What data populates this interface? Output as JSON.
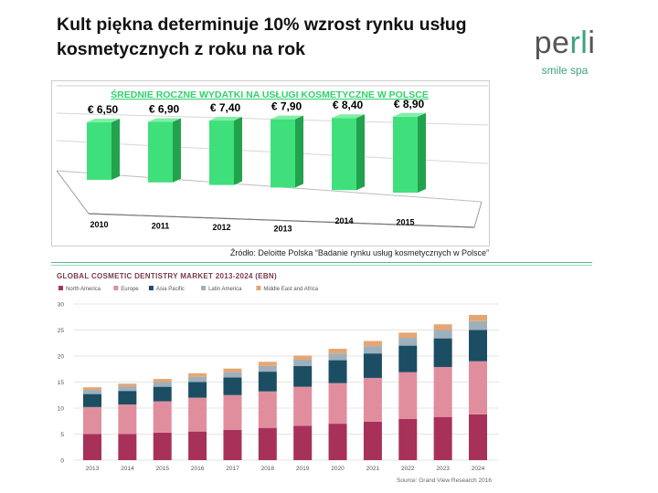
{
  "slide": {
    "title": "Kult piękna determinuje 10% wzrost rynku usług kosmetycznych z roku na rok"
  },
  "logo": {
    "name_left": "pe",
    "name_accent": "rl",
    "name_right": "i",
    "tagline": "smile spa"
  },
  "source_1": "Źródło: Deloitte Polska “Badanie rynku usług kosmetycznych w Polsce”",
  "colors": {
    "bar_green": "#3fe07c",
    "bar_green_side": "#23a24e",
    "bar_green_top": "#7ef0a6",
    "title_green": "#2fd36b",
    "north_america": "#a8315a",
    "europe": "#e08e9d",
    "asia_pacific": "#1c4e63",
    "latin_america": "#9eb0bc",
    "middle_east_africa": "#e5a673",
    "chart2_title": "#7a3a4a"
  },
  "chart_data": [
    {
      "type": "bar",
      "title": "ŚREDNIE ROCZNE WYDATKI NA USŁUGI KOSMETYCZNE W POLSCE",
      "categories": [
        "2010",
        "2011",
        "2012",
        "2013",
        "2014",
        "2015"
      ],
      "values": [
        6.5,
        6.9,
        7.4,
        7.9,
        8.4,
        8.9
      ],
      "value_labels": [
        "€  6,50",
        "€  6,90",
        "€  7,40",
        "€  7,90",
        "€  8,40",
        "€  8,90"
      ],
      "currency": "EUR"
    },
    {
      "type": "bar",
      "stacked": true,
      "title": "GLOBAL COSMETIC DENTISTRY MARKET 2013-2024 (EBN)",
      "categories": [
        "2013",
        "2014",
        "2015",
        "2016",
        "2017",
        "2018",
        "2019",
        "2020",
        "2021",
        "2022",
        "2023",
        "2024"
      ],
      "ylim": [
        0,
        30
      ],
      "yticks": [
        "0",
        "5",
        "10",
        "15",
        "20",
        "25",
        "30"
      ],
      "grid": true,
      "legend": "top-left",
      "series": [
        {
          "name": "North America",
          "color_key": "north_america",
          "values": [
            5.0,
            5.0,
            5.3,
            5.5,
            5.8,
            6.2,
            6.6,
            7.0,
            7.4,
            7.9,
            8.3,
            8.8
          ]
        },
        {
          "name": "Europe",
          "color_key": "europe",
          "values": [
            5.2,
            5.7,
            6.0,
            6.5,
            6.7,
            7.0,
            7.5,
            7.8,
            8.4,
            9.0,
            9.6,
            10.2
          ]
        },
        {
          "name": "Asia Pacific",
          "color_key": "asia_pacific",
          "values": [
            2.5,
            2.6,
            2.8,
            3.0,
            3.4,
            3.8,
            4.0,
            4.4,
            4.7,
            5.1,
            5.5,
            6.0
          ]
        },
        {
          "name": "Latin America",
          "color_key": "latin_america",
          "values": [
            0.8,
            0.9,
            0.9,
            1.0,
            1.0,
            1.1,
            1.2,
            1.3,
            1.4,
            1.5,
            1.6,
            1.7
          ]
        },
        {
          "name": "Middle East and Africa",
          "color_key": "middle_east_africa",
          "values": [
            0.5,
            0.5,
            0.6,
            0.7,
            0.7,
            0.8,
            0.8,
            0.9,
            1.0,
            1.0,
            1.1,
            1.2
          ]
        }
      ],
      "source": "Source: Grand View Research 2016"
    }
  ]
}
